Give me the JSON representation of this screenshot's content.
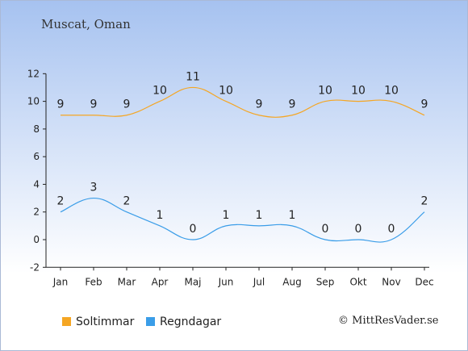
{
  "title": "Muscat, Oman",
  "credit": "© MittResVader.se",
  "colors": {
    "soltimmar": "#f5a623",
    "regndagar": "#3a9de8"
  },
  "chart_data": {
    "type": "line",
    "title": "Muscat, Oman",
    "xlabel": "",
    "ylabel": "",
    "categories": [
      "Jan",
      "Feb",
      "Mar",
      "Apr",
      "Maj",
      "Jun",
      "Jul",
      "Aug",
      "Sep",
      "Okt",
      "Nov",
      "Dec"
    ],
    "series": [
      {
        "name": "Soltimmar",
        "color": "#f5a623",
        "values": [
          9,
          9,
          9,
          10,
          11,
          10,
          9,
          9,
          10,
          10,
          10,
          9
        ]
      },
      {
        "name": "Regndagar",
        "color": "#3a9de8",
        "values": [
          2,
          3,
          2,
          1,
          0,
          1,
          1,
          1,
          0,
          0,
          0,
          2
        ]
      }
    ],
    "ylim": [
      -2,
      12
    ],
    "yticks": [
      -2,
      0,
      2,
      4,
      6,
      8,
      10,
      12
    ],
    "grid": false,
    "legend": "bottom-left"
  }
}
